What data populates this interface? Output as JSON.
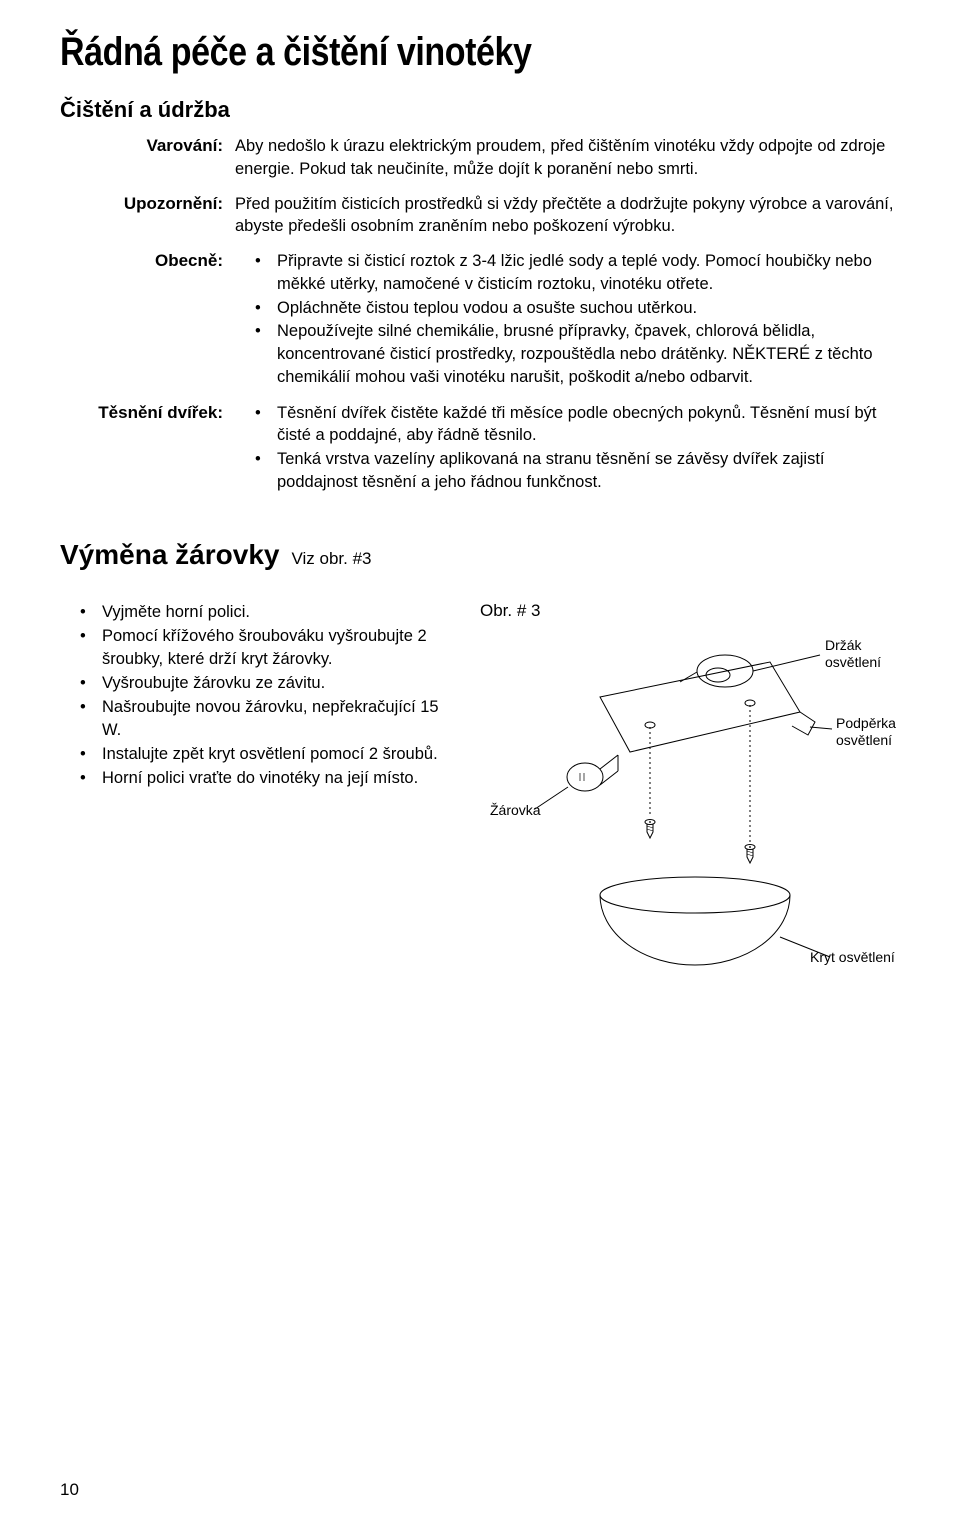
{
  "title": "Řádná péče a čištění vinotéky",
  "subsection": "Čištění a údržba",
  "rows": {
    "warning_label": "Varování:",
    "warning_text": "Aby nedošlo k úrazu elektrickým proudem, před čištěním vinotéku vždy odpojte od zdroje energie. Pokud tak neučiníte, může dojít k poranění nebo smrti.",
    "caution_label": "Upozornění:",
    "caution_text": "Před použitím čisticích prostředků si vždy přečtěte a dodržujte pokyny výrobce a varování, abyste předešli osobním zraněním nebo poškození výrobku.",
    "general_label": "Obecně:",
    "general_items": [
      "Připravte si čisticí roztok z 3-4 lžic jedlé sody a teplé vody. Pomocí houbičky nebo měkké utěrky, namočené v čisticím roztoku, vinotéku otřete.",
      "Opláchněte čistou teplou vodou a osušte suchou utěrkou.",
      "Nepoužívejte silné chemikálie, brusné přípravky, čpavek, chlorová bělidla, koncentrované čisticí prostředky, rozpouštědla nebo drátěnky. NĚKTERÉ z těchto chemikálií mohou vaši vinotéku narušit, poškodit a/nebo odbarvit."
    ],
    "gasket_label": "Těsnění dvířek:",
    "gasket_items": [
      "Těsnění dvířek čistěte každé tři měsíce podle obecných pokynů. Těsnění musí být čisté a poddajné, aby řádně těsnilo.",
      "Tenká vrstva vazelíny aplikovaná na stranu těsnění se závěsy dvířek zajistí poddajnost těsnění a jeho řádnou funkčnost."
    ]
  },
  "section2": {
    "title": "Výměna žárovky",
    "ref": "Viz obr. #3",
    "steps": [
      "Vyjměte horní polici.",
      "Pomocí křížového šroubováku vyšroubujte 2 šroubky, které drží kryt žárovky.",
      "Vyšroubujte žárovku ze závitu.",
      "Našroubujte novou žárovku, nepřekračující 15 W.",
      "Instalujte zpět kryt osvětlení pomocí 2 šroubů.",
      "Horní polici vraťte do vinotéky na její místo."
    ],
    "figure_caption": "Obr. # 3",
    "labels": {
      "bulb": "Žárovka",
      "holder": "Držák osvětlení",
      "support": "Podpěrka osvětlení",
      "cover": "Kryt osvětlení"
    }
  },
  "page_number": "10",
  "colors": {
    "text": "#000000",
    "bg": "#ffffff",
    "line": "#000000"
  }
}
